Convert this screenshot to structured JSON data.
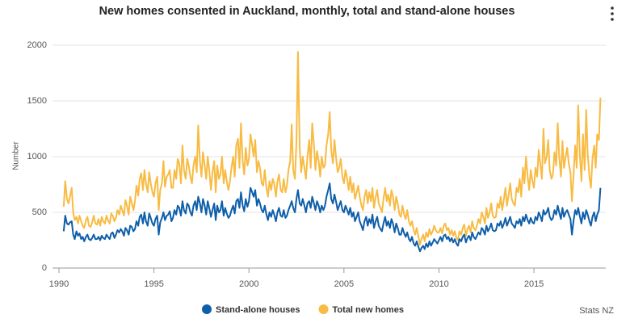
{
  "chart_data": {
    "type": "line",
    "title": "New homes consented in Auckland, monthly, total and stand-alone houses",
    "y_label": "Number",
    "source": "Stats NZ",
    "legend": "bottom",
    "grid": true,
    "xlim": [
      1989.66,
      2018.78
    ],
    "xticks": [
      1990,
      1995,
      2000,
      2005,
      2010,
      2015
    ],
    "ylim": [
      0,
      2000
    ],
    "yticks": [
      0,
      500,
      1000,
      1500,
      2000
    ],
    "x": [
      1990.25,
      1990.33,
      1990.42,
      1990.5,
      1990.58,
      1990.67,
      1990.75,
      1990.83,
      1990.92,
      1991,
      1991.08,
      1991.17,
      1991.25,
      1991.33,
      1991.42,
      1991.5,
      1991.58,
      1991.67,
      1991.75,
      1991.83,
      1991.92,
      1992,
      1992.08,
      1992.17,
      1992.25,
      1992.33,
      1992.42,
      1992.5,
      1992.58,
      1992.67,
      1992.75,
      1992.83,
      1992.92,
      1993,
      1993.08,
      1993.17,
      1993.25,
      1993.33,
      1993.42,
      1993.5,
      1993.58,
      1993.67,
      1993.75,
      1993.83,
      1993.92,
      1994,
      1994.08,
      1994.17,
      1994.25,
      1994.33,
      1994.42,
      1994.5,
      1994.58,
      1994.67,
      1994.75,
      1994.83,
      1994.92,
      1995,
      1995.08,
      1995.17,
      1995.25,
      1995.33,
      1995.42,
      1995.5,
      1995.58,
      1995.67,
      1995.75,
      1995.83,
      1995.92,
      1996,
      1996.08,
      1996.17,
      1996.25,
      1996.33,
      1996.42,
      1996.5,
      1996.58,
      1996.67,
      1996.75,
      1996.83,
      1996.92,
      1997,
      1997.08,
      1997.17,
      1997.25,
      1997.33,
      1997.42,
      1997.5,
      1997.58,
      1997.67,
      1997.75,
      1997.83,
      1997.92,
      1998,
      1998.08,
      1998.17,
      1998.25,
      1998.33,
      1998.42,
      1998.5,
      1998.58,
      1998.67,
      1998.75,
      1998.83,
      1998.92,
      1999,
      1999.08,
      1999.17,
      1999.25,
      1999.33,
      1999.42,
      1999.5,
      1999.58,
      1999.67,
      1999.75,
      1999.83,
      1999.92,
      2000,
      2000.08,
      2000.17,
      2000.25,
      2000.33,
      2000.42,
      2000.5,
      2000.58,
      2000.67,
      2000.75,
      2000.83,
      2000.92,
      2001,
      2001.08,
      2001.17,
      2001.25,
      2001.33,
      2001.42,
      2001.5,
      2001.58,
      2001.67,
      2001.75,
      2001.83,
      2001.92,
      2002,
      2002.08,
      2002.17,
      2002.25,
      2002.33,
      2002.42,
      2002.5,
      2002.58,
      2002.67,
      2002.75,
      2002.83,
      2002.92,
      2003,
      2003.08,
      2003.17,
      2003.25,
      2003.33,
      2003.42,
      2003.5,
      2003.58,
      2003.67,
      2003.75,
      2003.83,
      2003.92,
      2004,
      2004.08,
      2004.17,
      2004.25,
      2004.33,
      2004.42,
      2004.5,
      2004.58,
      2004.67,
      2004.75,
      2004.83,
      2004.92,
      2005,
      2005.08,
      2005.17,
      2005.25,
      2005.33,
      2005.42,
      2005.5,
      2005.58,
      2005.67,
      2005.75,
      2005.83,
      2005.92,
      2006,
      2006.08,
      2006.17,
      2006.25,
      2006.33,
      2006.42,
      2006.5,
      2006.58,
      2006.67,
      2006.75,
      2006.83,
      2006.92,
      2007,
      2007.08,
      2007.17,
      2007.25,
      2007.33,
      2007.42,
      2007.5,
      2007.58,
      2007.67,
      2007.75,
      2007.83,
      2007.92,
      2008,
      2008.08,
      2008.17,
      2008.25,
      2008.33,
      2008.42,
      2008.5,
      2008.58,
      2008.67,
      2008.75,
      2008.83,
      2008.92,
      2009,
      2009.08,
      2009.17,
      2009.25,
      2009.33,
      2009.42,
      2009.5,
      2009.58,
      2009.67,
      2009.75,
      2009.83,
      2009.92,
      2010,
      2010.08,
      2010.17,
      2010.25,
      2010.33,
      2010.42,
      2010.5,
      2010.58,
      2010.67,
      2010.75,
      2010.83,
      2010.92,
      2011,
      2011.08,
      2011.17,
      2011.25,
      2011.33,
      2011.42,
      2011.5,
      2011.58,
      2011.67,
      2011.75,
      2011.83,
      2011.92,
      2012,
      2012.08,
      2012.17,
      2012.25,
      2012.33,
      2012.42,
      2012.5,
      2012.58,
      2012.67,
      2012.75,
      2012.83,
      2012.92,
      2013,
      2013.08,
      2013.17,
      2013.25,
      2013.33,
      2013.42,
      2013.5,
      2013.58,
      2013.67,
      2013.75,
      2013.83,
      2013.92,
      2014,
      2014.08,
      2014.17,
      2014.25,
      2014.33,
      2014.42,
      2014.5,
      2014.58,
      2014.67,
      2014.75,
      2014.83,
      2014.92,
      2015,
      2015.08,
      2015.17,
      2015.25,
      2015.33,
      2015.42,
      2015.5,
      2015.58,
      2015.67,
      2015.75,
      2015.83,
      2015.92,
      2016,
      2016.08,
      2016.17,
      2016.25,
      2016.33,
      2016.42,
      2016.5,
      2016.58,
      2016.67,
      2016.75,
      2016.83,
      2016.92,
      2017,
      2017.08,
      2017.17,
      2017.25,
      2017.33,
      2017.42,
      2017.5,
      2017.58,
      2017.67,
      2017.75,
      2017.83,
      2017.92,
      2018,
      2018.08,
      2018.17,
      2018.25,
      2018.33,
      2018.42,
      2018.5
    ],
    "series": [
      {
        "name": "Stand-alone houses",
        "color": "#0e5ea9",
        "values": [
          330,
          470,
          400,
          390,
          410,
          420,
          300,
          260,
          330,
          290,
          310,
          260,
          280,
          240,
          280,
          300,
          260,
          250,
          270,
          300,
          260,
          260,
          280,
          250,
          290,
          270,
          260,
          300,
          280,
          260,
          310,
          320,
          270,
          300,
          340,
          320,
          350,
          330,
          290,
          360,
          340,
          300,
          380,
          370,
          330,
          350,
          420,
          380,
          460,
          480,
          400,
          500,
          420,
          380,
          490,
          450,
          400,
          380,
          440,
          470,
          300,
          410,
          450,
          500,
          430,
          470,
          480,
          510,
          420,
          450,
          520,
          480,
          560,
          540,
          470,
          600,
          520,
          490,
          580,
          560,
          500,
          470,
          560,
          600,
          520,
          640,
          580,
          500,
          620,
          560,
          480,
          600,
          530,
          460,
          520,
          580,
          430,
          560,
          500,
          520,
          600,
          470,
          540,
          490,
          450,
          470,
          520,
          560,
          490,
          600,
          620,
          540,
          680,
          560,
          510,
          620,
          550,
          600,
          720,
          680,
          640,
          700,
          560,
          620,
          580,
          520,
          500,
          560,
          480,
          430,
          500,
          460,
          520,
          480,
          420,
          500,
          540,
          470,
          460,
          520,
          450,
          470,
          520,
          560,
          600,
          540,
          500,
          620,
          700,
          580,
          560,
          620,
          560,
          500,
          580,
          600,
          540,
          640,
          580,
          520,
          600,
          560,
          500,
          560,
          520,
          560,
          640,
          700,
          760,
          620,
          580,
          660,
          600,
          520,
          560,
          600,
          520,
          500,
          560,
          520,
          480,
          540,
          460,
          500,
          420,
          460,
          500,
          420,
          380,
          340,
          420,
          460,
          380,
          440,
          400,
          480,
          360,
          420,
          460,
          380,
          350,
          330,
          400,
          460,
          380,
          420,
          360,
          440,
          400,
          320,
          400,
          360,
          300,
          300,
          360,
          310,
          280,
          320,
          260,
          240,
          280,
          220,
          200,
          240,
          190,
          150,
          180,
          200,
          170,
          220,
          190,
          240,
          200,
          230,
          260,
          240,
          220,
          250,
          280,
          240,
          290,
          300,
          260,
          280,
          240,
          270,
          230,
          260,
          220,
          200,
          260,
          240,
          280,
          300,
          230,
          270,
          290,
          250,
          320,
          280,
          260,
          290,
          320,
          300,
          360,
          340,
          300,
          380,
          330,
          360,
          400,
          340,
          330,
          340,
          400,
          380,
          420,
          360,
          400,
          450,
          380,
          420,
          460,
          400,
          380,
          360,
          420,
          400,
          440,
          380,
          460,
          420,
          480,
          430,
          400,
          450,
          410,
          400,
          460,
          430,
          500,
          470,
          420,
          520,
          480,
          500,
          540,
          460,
          430,
          450,
          520,
          480,
          560,
          500,
          440,
          540,
          460,
          500,
          520,
          480,
          440,
          300,
          420,
          520,
          480,
          540,
          460,
          400,
          500,
          440,
          520,
          480,
          420,
          380,
          460,
          500,
          420,
          480,
          520,
          720
        ]
      },
      {
        "name": "Total new homes",
        "color": "#f8bb43",
        "values": [
          550,
          780,
          620,
          580,
          640,
          720,
          500,
          430,
          460,
          400,
          470,
          420,
          380,
          360,
          430,
          460,
          380,
          370,
          410,
          470,
          400,
          390,
          440,
          380,
          460,
          420,
          400,
          470,
          430,
          400,
          490,
          470,
          420,
          450,
          520,
          480,
          560,
          520,
          470,
          610,
          560,
          480,
          640,
          590,
          520,
          600,
          740,
          650,
          800,
          850,
          700,
          880,
          760,
          680,
          860,
          760,
          680,
          640,
          760,
          820,
          520,
          700,
          760,
          960,
          730,
          820,
          840,
          880,
          720,
          720,
          880,
          800,
          980,
          940,
          760,
          1100,
          880,
          800,
          980,
          920,
          820,
          760,
          920,
          1000,
          860,
          1280,
          960,
          820,
          1040,
          920,
          800,
          1000,
          860,
          700,
          860,
          960,
          680,
          920,
          800,
          840,
          1000,
          760,
          880,
          780,
          700,
          780,
          900,
          1000,
          820,
          1100,
          1160,
          900,
          1300,
          960,
          840,
          1080,
          920,
          980,
          1200,
          1100,
          1000,
          1150,
          860,
          960,
          900,
          760,
          740,
          880,
          720,
          640,
          780,
          700,
          800,
          760,
          640,
          780,
          840,
          700,
          680,
          800,
          680,
          740,
          880,
          960,
          1290,
          880,
          800,
          1140,
          1940,
          1080,
          860,
          1000,
          900,
          800,
          1000,
          1150,
          900,
          1300,
          1100,
          880,
          1050,
          960,
          820,
          1000,
          900,
          920,
          1100,
          1200,
          1400,
          1060,
          940,
          1150,
          1000,
          860,
          900,
          980,
          820,
          760,
          880,
          800,
          700,
          820,
          680,
          760,
          620,
          680,
          740,
          640,
          560,
          520,
          640,
          700,
          580,
          680,
          600,
          720,
          540,
          640,
          700,
          580,
          540,
          500,
          620,
          720,
          600,
          660,
          560,
          700,
          640,
          520,
          640,
          580,
          480,
          460,
          560,
          480,
          440,
          520,
          420,
          380,
          420,
          340,
          300,
          360,
          280,
          210,
          260,
          300,
          240,
          320,
          280,
          350,
          300,
          330,
          380,
          340,
          320,
          320,
          360,
          310,
          380,
          400,
          340,
          360,
          300,
          340,
          290,
          330,
          270,
          250,
          330,
          300,
          360,
          390,
          290,
          350,
          380,
          320,
          420,
          360,
          340,
          380,
          440,
          400,
          500,
          460,
          400,
          540,
          450,
          500,
          580,
          470,
          450,
          460,
          580,
          540,
          640,
          520,
          620,
          720,
          560,
          660,
          760,
          620,
          580,
          560,
          720,
          680,
          800,
          640,
          900,
          760,
          1000,
          820,
          700,
          880,
          780,
          720,
          900,
          820,
          1060,
          940,
          800,
          1250,
          940,
          1000,
          1150,
          880,
          800,
          840,
          1040,
          920,
          1300,
          1000,
          820,
          1140,
          900,
          1000,
          1080,
          940,
          860,
          600,
          820,
          1100,
          900,
          1460,
          1000,
          780,
          1200,
          880,
          1420,
          1020,
          820,
          720,
          980,
          1100,
          900,
          1200,
          1150,
          1530
        ]
      }
    ]
  }
}
